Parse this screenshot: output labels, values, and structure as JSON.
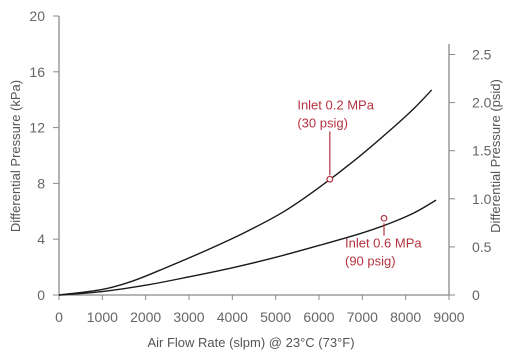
{
  "chart_data": {
    "type": "line",
    "title": "",
    "xlabel": "Air Flow Rate (slpm) @ 23°C (73°F)",
    "ylabel": "Differential Pressure (kPa)",
    "y2label": "Differential Pressure (psid)",
    "xlim": [
      0,
      9000
    ],
    "ylim": [
      0,
      20
    ],
    "y2lim": [
      0,
      2.9
    ],
    "grid": false,
    "xticks": [
      "0",
      "1000",
      "2000",
      "3000",
      "4000",
      "5000",
      "6000",
      "7000",
      "8000",
      "9000"
    ],
    "yticks": [
      "0",
      "4",
      "8",
      "12",
      "16",
      "20"
    ],
    "y2ticks": [
      "0",
      "0.5",
      "1.0",
      "1.5",
      "2.0",
      "2.5"
    ],
    "colors": {
      "line": "#1a1a1a",
      "annotation": "#b5333f",
      "axis": "#8a8a8a",
      "text": "#666666"
    },
    "series": [
      {
        "x": [
          0,
          1000,
          1700,
          2500,
          3400,
          4300,
          5200,
          6000,
          6800,
          7600,
          8200,
          8600
        ],
        "y": [
          0,
          0.4,
          1.0,
          2.0,
          3.2,
          4.5,
          6.0,
          7.7,
          9.6,
          11.7,
          13.4,
          14.7
        ]
      },
      {
        "x": [
          0,
          1000,
          2000,
          3000,
          4000,
          5000,
          6000,
          7000,
          7600,
          8200,
          8700
        ],
        "y": [
          0,
          0.25,
          0.7,
          1.3,
          1.95,
          2.7,
          3.55,
          4.45,
          5.1,
          5.9,
          6.8
        ]
      }
    ],
    "annotations": [
      {
        "lines": [
          "Inlet 0.2 MPa",
          "(30 psig)"
        ],
        "x": 6250,
        "y": 8.3,
        "text_x": 5500,
        "text_y": 13.3
      },
      {
        "lines": [
          "Inlet 0.6 MPa",
          "(90 psig)"
        ],
        "x": 7500,
        "y": 5.5,
        "text_x": 6600,
        "text_y": 3.4
      }
    ]
  }
}
